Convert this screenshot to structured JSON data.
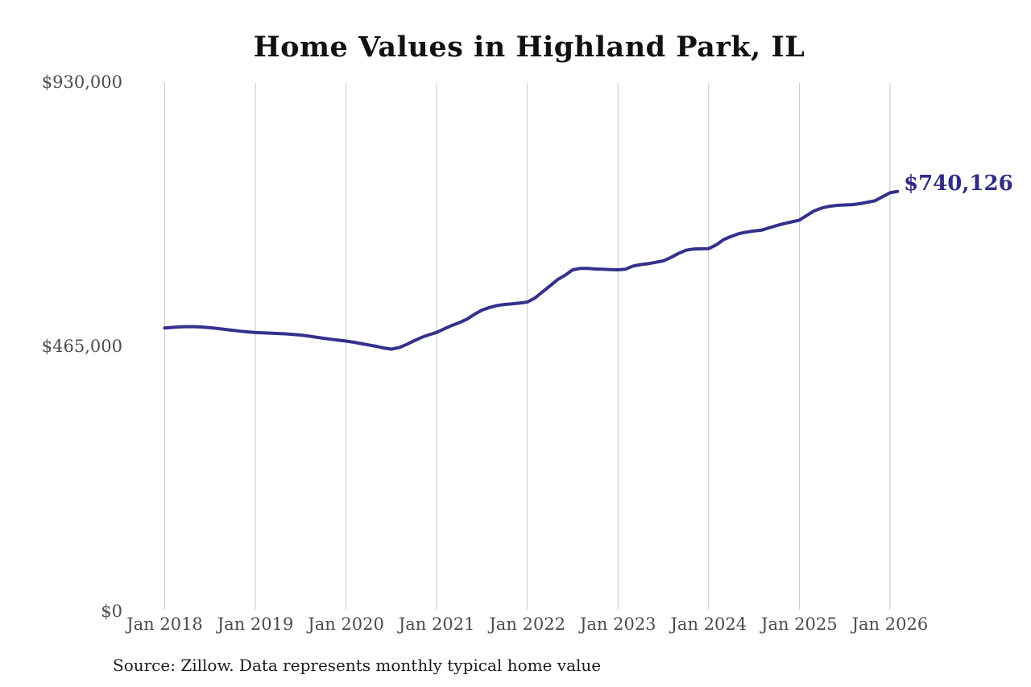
{
  "title": "Home Values in Highland Park, IL",
  "footer": {
    "source_note": "Source: Zillow. Data represents monthly typical home value"
  },
  "colors": {
    "line": "#34308c",
    "end_label_text": "#302b8c",
    "gridline": "#c9c9c9",
    "axis_text": "#4c4c4c",
    "title_text": "#111111"
  },
  "chart_data": {
    "type": "line",
    "title": "Home Values in Highland Park, IL",
    "xlabel": "",
    "ylabel": "",
    "grid": "vertical-only",
    "legend": "none",
    "ylim": [
      0,
      930000
    ],
    "y_ticks": [
      {
        "value": 0,
        "label": "$0"
      },
      {
        "value": 465000,
        "label": "$465,000"
      },
      {
        "value": 930000,
        "label": "$930,000"
      }
    ],
    "x_ticks": [
      "Jan 2018",
      "Jan 2019",
      "Jan 2020",
      "Jan 2021",
      "Jan 2022",
      "Jan 2023",
      "Jan 2024",
      "Jan 2025",
      "Jan 2026"
    ],
    "series": [
      {
        "name": "Monthly typical home value",
        "start_month": "2018-01",
        "end_month": "2026-02",
        "frequency": "monthly",
        "final_value": 740126,
        "final_value_label": "$740,126",
        "values": [
          500000,
          501100,
          502000,
          502300,
          502300,
          501600,
          500500,
          499100,
          497500,
          496000,
          494500,
          493200,
          492000,
          491500,
          491000,
          490400,
          489800,
          488800,
          487600,
          485900,
          484000,
          482000,
          480300,
          478600,
          477000,
          475000,
          472700,
          470300,
          467800,
          464900,
          462900,
          465500,
          471000,
          477500,
          483500,
          488200,
          492300,
          498500,
          504500,
          509500,
          515500,
          524000,
          531500,
          536000,
          539600,
          541500,
          542400,
          543900,
          545700,
          552800,
          563500,
          574000,
          585000,
          592800,
          602300,
          604700,
          604900,
          603700,
          603500,
          602800,
          602300,
          603500,
          609000,
          611500,
          613000,
          615500,
          618000,
          624000,
          631000,
          636700,
          638800,
          639300,
          639500,
          646000,
          655600,
          661000,
          665900,
          668500,
          670500,
          672000,
          676000,
          680000,
          683500,
          686500,
          689600,
          698000,
          706000,
          711000,
          714000,
          715500,
          716200,
          716800,
          718500,
          721000,
          723500,
          730500,
          737600,
          740126
        ]
      }
    ]
  }
}
